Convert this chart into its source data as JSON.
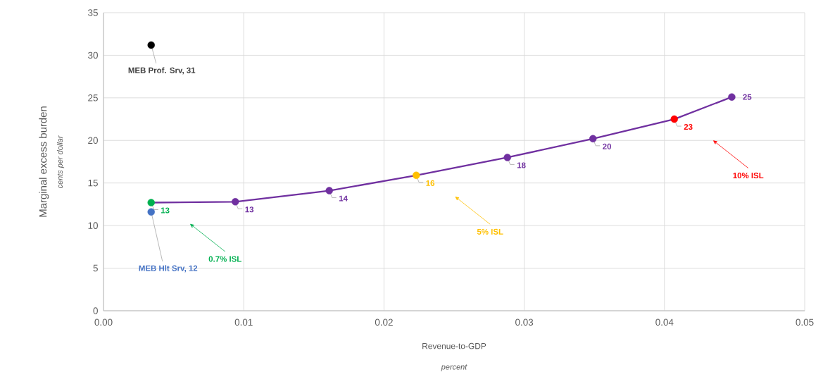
{
  "chart_data": {
    "type": "line",
    "xlabel": "Revenue-to-GDP",
    "ylabel": "Marginal excess burden",
    "xlim": [
      0,
      0.05
    ],
    "ylim": [
      0,
      35
    ],
    "xticks": [
      {
        "value": 0,
        "label": "0.00"
      },
      {
        "value": 0.01,
        "label": "0.01"
      },
      {
        "value": 0.02,
        "label": "0.02"
      },
      {
        "value": 0.03,
        "label": "0.03"
      },
      {
        "value": 0.04,
        "label": "0.04"
      },
      {
        "value": 0.05,
        "label": "0.05"
      }
    ],
    "yticks": [
      0,
      5,
      10,
      15,
      20,
      25,
      30,
      35
    ],
    "grid": true,
    "marker": "circle",
    "series": [
      {
        "color": "#7030a0",
        "x": [
          0.0034,
          0.0094,
          0.0161,
          0.0223,
          0.0288,
          0.0349,
          0.0407,
          0.0448
        ],
        "values": [
          12.7,
          12.8,
          14.1,
          15.9,
          18.0,
          20.2,
          22.5,
          25.1
        ],
        "colors": [
          "#00b050",
          "#7030a0",
          "#7030a0",
          "#ffc000",
          "#7030a0",
          "#7030a0",
          "#ff0000",
          "#7030a0"
        ],
        "value_labels": [
          "13",
          "13",
          "14",
          "16",
          "18",
          "20",
          "23",
          "25"
        ]
      },
      {
        "type": "scatter",
        "color": "#000000",
        "x": [
          0.0034
        ],
        "values": [
          31.2
        ],
        "value_labels": [
          "MEB Prof. Srv, 31"
        ]
      },
      {
        "type": "scatter",
        "color": "#4472c4",
        "x": [
          0.0034
        ],
        "values": [
          11.6
        ],
        "value_labels": [
          "MEB Hlt Srv, 12"
        ]
      }
    ],
    "annotations": [
      "0.7% ISL",
      "5% ISL",
      "10% ISL",
      "cents per dollar",
      "percent"
    ]
  }
}
